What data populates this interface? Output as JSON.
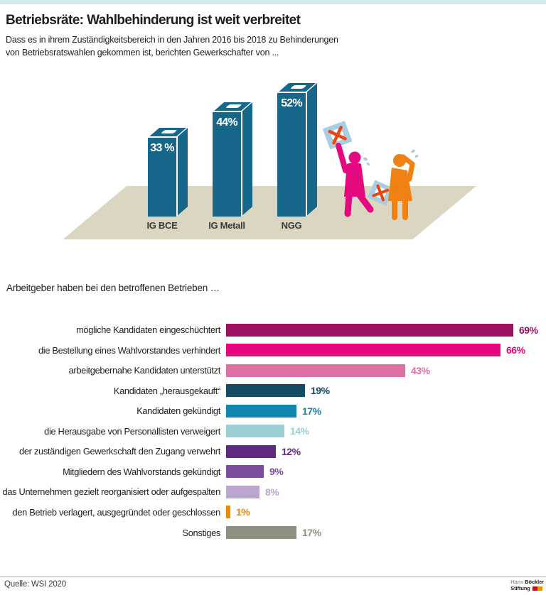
{
  "header": {
    "title": "Betriebsräte: Wahlbehinderung ist weit verbreitet",
    "subtitle_lines": {
      "line1": "Dass es in ihrem Zuständigkeitsbereich in den Jahren 2016 bis 2018 zu Behinderungen",
      "line2": "von Betriebsratswahlen gekommen ist, berichten Gewerkschafter von ..."
    }
  },
  "chart_data": [
    {
      "type": "bar",
      "variant": "3d-columns-ballot-boxes",
      "categories": [
        "IG BCE",
        "IG Metall",
        "NGG"
      ],
      "values": [
        33,
        44,
        52
      ],
      "value_labels": [
        "33 %",
        "44%",
        "52%"
      ],
      "unit": "%",
      "ylim": [
        0,
        60
      ],
      "bar_color": "#17678A",
      "floor_color": "#DBD6C2",
      "annotation": "Stilisierte Figuren (pink und orange) mit durchkreuzten Wahlzetteln"
    },
    {
      "type": "bar",
      "variant": "horizontal",
      "title": "Arbeitgeber haben bei den betroffenen Betrieben …",
      "categories": [
        "mögliche Kandidaten eingeschüchtert",
        "die Bestellung eines Wahlvorstandes verhindert",
        "arbeitgebernahe Kandidaten unterstützt",
        "Kandidaten „herausgekauft“",
        "Kandidaten gekündigt",
        "die Herausgabe von Personallisten verweigert",
        "der zuständigen Gewerkschaft den Zugang verwehrt",
        "Mitgliedern des Wahlvorstands gekündigt",
        "das Unternehmen gezielt reorganisiert oder aufgespalten",
        "den Betrieb verlagert, ausgegründet oder geschlossen",
        "Sonstiges"
      ],
      "values": [
        69,
        66,
        43,
        19,
        17,
        14,
        12,
        9,
        8,
        1,
        17
      ],
      "value_labels": [
        "69%",
        "66%",
        "43%",
        "19%",
        "17%",
        "14%",
        "12%",
        "9%",
        "8%",
        "1%",
        "17%"
      ],
      "colors": [
        "#9B1360",
        "#E5077E",
        "#DD6FA4",
        "#174A63",
        "#1186B0",
        "#9AD0D4",
        "#5F2B7E",
        "#7C4D9D",
        "#BBA6D1",
        "#F28700",
        "#8F8F80"
      ],
      "unit": "%",
      "xlim": [
        0,
        75
      ]
    }
  ],
  "illustration": {
    "figure_colors": {
      "left_person": "#E5097F",
      "right_person": "#F08214"
    },
    "ballot_color": "#A9CDE3",
    "cross_color": "#E8470F"
  },
  "footer": {
    "source": "Quelle: WSI 2020",
    "logo": {
      "line1_light": "Hans",
      "line1_bold": "Böckler",
      "line2_bold": "Stiftung",
      "block_colors": [
        "#E2001A",
        "#F39200"
      ]
    }
  },
  "accent": {
    "top_band_color": "#D4E8F2"
  }
}
